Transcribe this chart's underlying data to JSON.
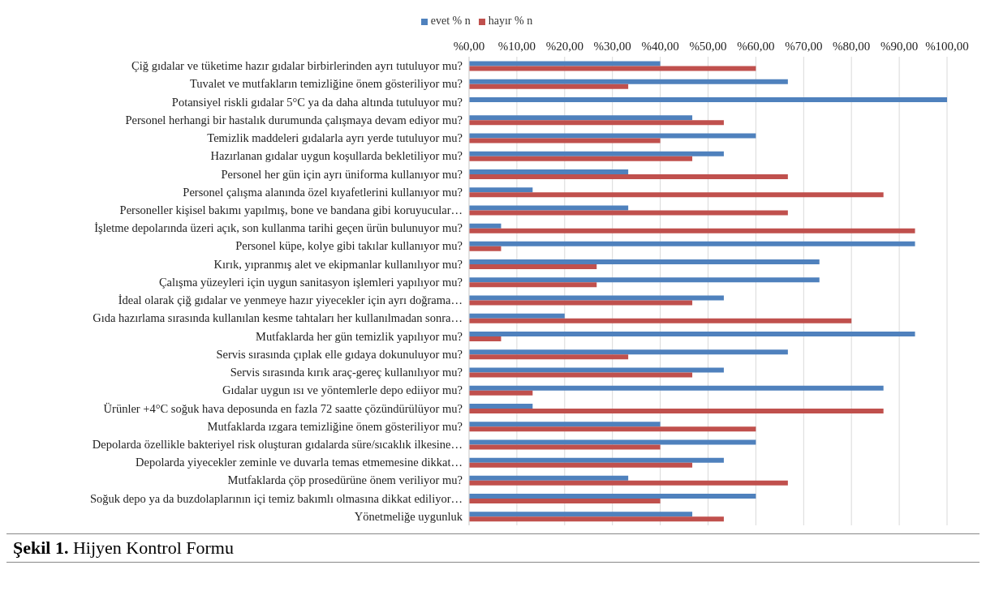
{
  "chart_data": {
    "type": "bar",
    "orientation": "horizontal",
    "legend": "top",
    "grid": "x",
    "categories": [
      "Çiğ gıdalar ve tüketime hazır gıdalar birbirlerinden ayrı tutuluyor mu?",
      "Tuvalet ve mutfakların temizliğine önem gösteriliyor mu?",
      "Potansiyel riskli gıdalar 5°C ya da daha altında tutuluyor mu?",
      "Personel herhangi bir hastalık durumunda çalışmaya devam ediyor mu?",
      "Temizlik maddeleri gıdalarla ayrı yerde tutuluyor mu?",
      "Hazırlanan gıdalar uygun koşullarda bekletiliyor mu?",
      "Personel her gün için ayrı üniforma kullanıyor mu?",
      "Personel çalışma alanında özel kıyafetlerini kullanıyor mu?",
      "Personeller kişisel bakımı yapılmış, bone ve bandana gibi koruyucular…",
      "İşletme depolarında üzeri açık, son kullanma tarihi geçen ürün bulunuyor mu?",
      "Personel küpe, kolye gibi takılar kullanıyor mu?",
      "Kırık, yıpranmış alet ve ekipmanlar kullanılıyor mu?",
      "Çalışma yüzeyleri için uygun sanitasyon işlemleri yapılıyor mu?",
      "İdeal olarak çiğ gıdalar ve yenmeye hazır yiyecekler için ayrı doğrama…",
      "Gıda hazırlama sırasında kullanılan kesme tahtaları her kullanılmadan sonra…",
      "Mutfaklarda her gün temizlik yapılıyor mu?",
      "Servis sırasında çıplak elle gıdaya dokunuluyor mu?",
      "Servis sırasında kırık araç-gereç kullanılıyor mu?",
      "Gıdalar uygun ısı ve yöntemlerle depo ediiyor mu?",
      "Ürünler +4°C soğuk hava deposunda en fazla 72 saatte çözündürülüyor mu?",
      "Mutfaklarda ızgara temizliğine önem gösteriliyor mu?",
      "Depolarda özellikle bakteriyel risk oluşturan gıdalarda süre/sıcaklık ilkesine…",
      "Depolarda yiyecekler zeminle ve duvarla temas etmemesine dikkat…",
      "Mutfaklarda çöp prosedürüne önem veriliyor mu?",
      "Soğuk depo ya da buzdolaplarının içi temiz bakımlı olmasına dikkat ediliyor…",
      "Yönetmeliğe uygunluk"
    ],
    "series": [
      {
        "name": "evet % n",
        "color": "#4f81bd",
        "values": [
          40,
          66.7,
          100,
          46.7,
          60,
          53.3,
          33.3,
          13.3,
          33.3,
          6.7,
          93.3,
          73.3,
          73.3,
          53.3,
          20,
          93.3,
          66.7,
          53.3,
          86.7,
          13.3,
          40,
          60,
          53.3,
          33.3,
          60,
          46.7
        ]
      },
      {
        "name": "hayır % n",
        "color": "#c0504d",
        "values": [
          60,
          33.3,
          0,
          53.3,
          40,
          46.7,
          66.7,
          86.7,
          66.7,
          93.3,
          6.7,
          26.7,
          26.7,
          46.7,
          80,
          6.7,
          33.3,
          46.7,
          13.3,
          86.7,
          60,
          40,
          46.7,
          66.7,
          40,
          53.3
        ]
      }
    ],
    "xlim": [
      0,
      100
    ],
    "xticks": [
      {
        "value": 0,
        "label": "%0,00"
      },
      {
        "value": 10,
        "label": "%10,00"
      },
      {
        "value": 20,
        "label": "%20,00"
      },
      {
        "value": 30,
        "label": "%30,00"
      },
      {
        "value": 40,
        "label": "%40,00"
      },
      {
        "value": 50,
        "label": "%50,00"
      },
      {
        "value": 60,
        "label": "%60,00"
      },
      {
        "value": 70,
        "label": "%70,00"
      },
      {
        "value": 80,
        "label": "%80,00"
      },
      {
        "value": 90,
        "label": "%90,00"
      },
      {
        "value": 100,
        "label": "%100,00"
      }
    ],
    "annotations": [
      "Şekil 1. Hijyen Kontrol Formu"
    ]
  }
}
